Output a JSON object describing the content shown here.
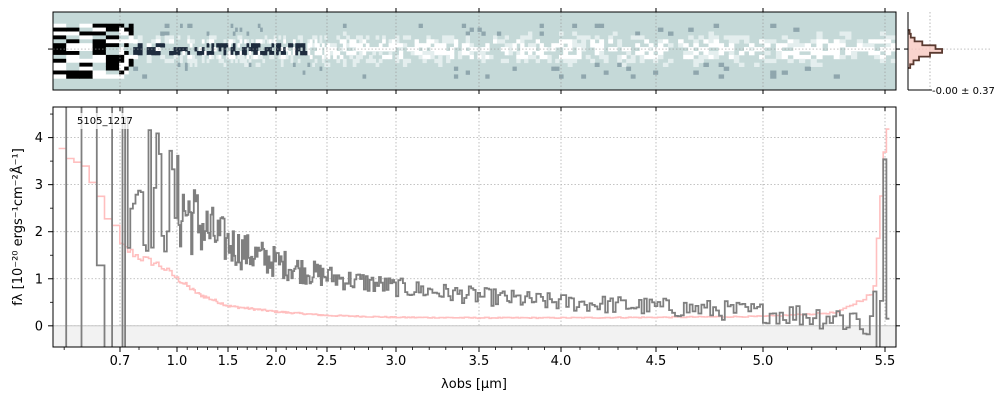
{
  "chart_data": [
    {
      "type": "heatmap",
      "panel": "2D spectrum",
      "x_range_um": [
        0.58,
        5.55
      ],
      "colormap": [
        "#c5d9d8",
        "#ffffff",
        "#1e2c3e",
        "#000000"
      ],
      "noise_region_end_um": 0.75,
      "trace_color": "#1e2c3e"
    },
    {
      "type": "line",
      "panel": "1D spectrum",
      "annotation": "5105_1217",
      "xlabel": "λobs [μm]",
      "ylabel": "fλ [10⁻²⁰ ergs⁻¹cm⁻²Å⁻¹]",
      "x_axis_scale": "sqrt-like (nonlinear)",
      "xlim": [
        0.58,
        5.55
      ],
      "ylim": [
        -0.45,
        4.65
      ],
      "grid": true,
      "x_ticks": [
        {
          "value": 0.7,
          "label": "0.7"
        },
        {
          "value": 1.0,
          "label": "1.0"
        },
        {
          "value": 1.5,
          "label": "1.5"
        },
        {
          "value": 2.0,
          "label": "2.0"
        },
        {
          "value": 2.5,
          "label": "2.5"
        },
        {
          "value": 3.0,
          "label": "3.0"
        },
        {
          "value": 3.5,
          "label": "3.5"
        },
        {
          "value": 4.0,
          "label": "4.0"
        },
        {
          "value": 4.5,
          "label": "4.5"
        },
        {
          "value": 5.0,
          "label": "5.0"
        },
        {
          "value": 5.5,
          "label": "5.5"
        }
      ],
      "y_ticks": [
        {
          "value": 0,
          "label": "0"
        },
        {
          "value": 1,
          "label": "1"
        },
        {
          "value": 2,
          "label": "2"
        },
        {
          "value": 3,
          "label": "3"
        },
        {
          "value": 4,
          "label": "4"
        }
      ],
      "series": [
        {
          "role": "flux",
          "style": "steps",
          "color": "#7f7f7f",
          "x": [
            0.6,
            0.65,
            0.7,
            0.75,
            0.8,
            0.9,
            1.0,
            1.1,
            1.2,
            1.3,
            1.5,
            1.7,
            2.0,
            2.3,
            2.6,
            3.0,
            3.3,
            3.6,
            3.9,
            4.2,
            4.5,
            4.8,
            5.0,
            5.2,
            5.3,
            5.4,
            5.45,
            5.5
          ],
          "y": [
            4.5,
            4.0,
            3.6,
            3.3,
            3.1,
            2.8,
            2.6,
            2.4,
            2.2,
            2.0,
            1.75,
            1.55,
            1.35,
            1.15,
            1.0,
            0.82,
            0.7,
            0.6,
            0.52,
            0.46,
            0.4,
            0.33,
            0.28,
            0.22,
            0.2,
            0.15,
            0.05,
            -0.2
          ]
        },
        {
          "role": "error",
          "style": "steps",
          "color": "#ffbfbf",
          "x": [
            0.6,
            0.65,
            0.7,
            0.8,
            0.9,
            1.0,
            1.2,
            1.5,
            2.0,
            2.5,
            3.0,
            3.5,
            4.0,
            4.5,
            5.0,
            5.3,
            5.45,
            5.5
          ],
          "y": [
            3.7,
            2.9,
            1.7,
            1.45,
            1.3,
            1.0,
            0.68,
            0.42,
            0.3,
            0.22,
            0.18,
            0.17,
            0.17,
            0.18,
            0.2,
            0.28,
            0.7,
            4.4
          ]
        }
      ]
    },
    {
      "type": "histogram",
      "panel": "spatial profile",
      "annotation": "-0.00 ± 0.37"
    }
  ]
}
